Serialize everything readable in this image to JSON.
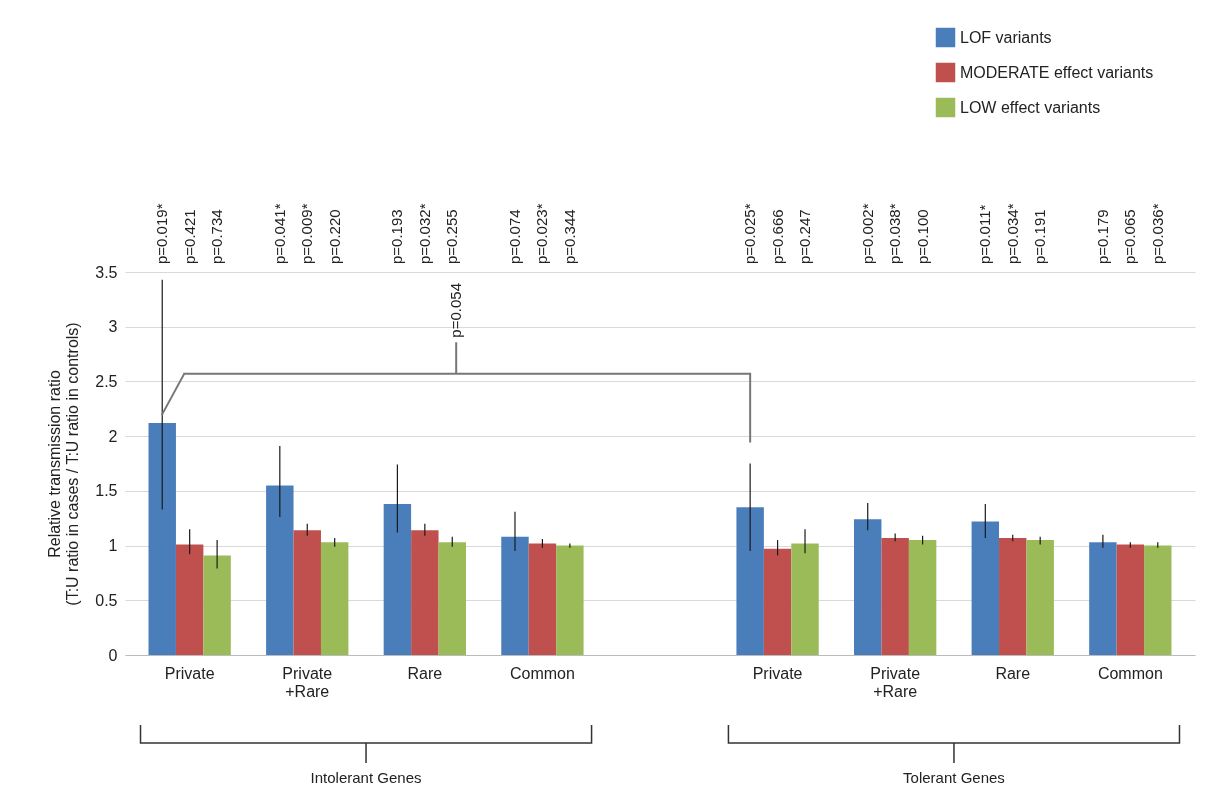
{
  "chart_data": {
    "type": "bar",
    "ylabel": "Relative transmission ratio\n(T:U ratio in cases / T:U ratio in controls)",
    "categories": [
      "Private",
      "Private +Rare",
      "Rare",
      "Common",
      null,
      "Private",
      "Private +Rare",
      "Rare",
      "Common"
    ],
    "series": [
      {
        "name": "LOF variants",
        "color": "#4a7ebb",
        "values": [
          2.12,
          1.55,
          1.38,
          1.08,
          null,
          1.35,
          1.24,
          1.22,
          1.03
        ],
        "errors": [
          [
            1.33,
            3.43
          ],
          [
            1.26,
            1.91
          ],
          [
            1.12,
            1.74
          ],
          [
            0.95,
            1.31
          ],
          null,
          [
            0.95,
            1.75
          ],
          [
            1.14,
            1.39
          ],
          [
            1.07,
            1.38
          ],
          [
            0.98,
            1.1
          ]
        ]
      },
      {
        "name": "MODERATE effect variants",
        "color": "#c0504d",
        "values": [
          1.01,
          1.14,
          1.14,
          1.02,
          null,
          0.97,
          1.07,
          1.07,
          1.01
        ],
        "errors": [
          [
            0.92,
            1.15
          ],
          [
            1.09,
            1.2
          ],
          [
            1.09,
            1.2
          ],
          [
            0.98,
            1.06
          ],
          null,
          [
            0.91,
            1.05
          ],
          [
            1.04,
            1.11
          ],
          [
            1.04,
            1.1
          ],
          [
            0.98,
            1.03
          ]
        ]
      },
      {
        "name": "LOW effect variants",
        "color": "#9bbb59",
        "values": [
          0.91,
          1.03,
          1.03,
          1.0,
          null,
          1.02,
          1.05,
          1.05,
          1.0
        ],
        "errors": [
          [
            0.79,
            1.05
          ],
          [
            0.99,
            1.07
          ],
          [
            0.99,
            1.08
          ],
          [
            0.98,
            1.02
          ],
          null,
          [
            0.93,
            1.15
          ],
          [
            1.01,
            1.09
          ],
          [
            1.01,
            1.08
          ],
          [
            0.98,
            1.03
          ]
        ]
      }
    ],
    "ylim": [
      0,
      3.5
    ],
    "yticks": [
      0,
      0.5,
      1,
      1.5,
      2,
      2.5,
      3,
      3.5
    ],
    "grid": "y",
    "legend": "top right",
    "annotations": [
      "p=0.054",
      "Intolerant Genes",
      "Tolerant Genes",
      "p=0.019*",
      "p=0.421",
      "p=0.734",
      "p=0.041*",
      "p=0.009*",
      "p=0.220",
      "p=0.193",
      "p=0.032*",
      "p=0.255",
      "p=0.074",
      "p=0.023*",
      "p=0.344",
      "p=0.025*",
      "p=0.666",
      "p=0.247",
      "p=0.002*",
      "p=0.038*",
      "p=0.100",
      "p=0.011*",
      "p=0.034*",
      "p=0.191",
      "p=0.179",
      "p=0.065",
      "p=0.036*"
    ]
  }
}
